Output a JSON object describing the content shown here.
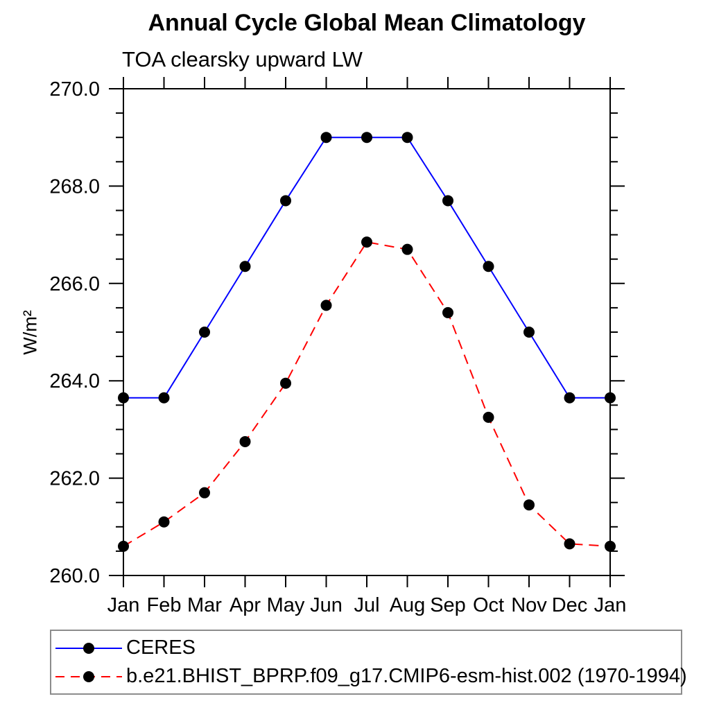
{
  "chart_data": {
    "type": "line",
    "title": "Annual Cycle Global Mean Climatology",
    "subtitle": "TOA clearsky upward LW",
    "ylabel": "W/m²",
    "categories": [
      "Jan",
      "Feb",
      "Mar",
      "Apr",
      "May",
      "Jun",
      "Jul",
      "Aug",
      "Sep",
      "Oct",
      "Nov",
      "Dec",
      "Jan"
    ],
    "ylim": [
      260.0,
      270.0
    ],
    "yticks": [
      260.0,
      262.0,
      264.0,
      266.0,
      268.0,
      270.0
    ],
    "ytick_labels": [
      "260.0",
      "262.0",
      "264.0",
      "266.0",
      "268.0",
      "270.0"
    ],
    "yminor_step": 0.5,
    "grid": false,
    "legend_position": "bottom-left",
    "series": [
      {
        "name": "CERES",
        "color": "#0000ff",
        "line_style": "solid",
        "marker": "filled-circle",
        "marker_color": "#000000",
        "values": [
          263.65,
          263.65,
          265.0,
          266.35,
          267.7,
          269.0,
          269.0,
          269.0,
          267.7,
          266.35,
          265.0,
          263.65,
          263.65
        ]
      },
      {
        "name": "b.e21.BHIST_BPRP.f09_g17.CMIP6-esm-hist.002 (1970-1994)",
        "color": "#ff0000",
        "line_style": "dashed",
        "marker": "filled-circle",
        "marker_color": "#000000",
        "values": [
          260.6,
          261.1,
          261.7,
          262.75,
          263.95,
          265.55,
          266.85,
          266.7,
          265.4,
          263.25,
          261.45,
          260.65,
          260.6
        ]
      }
    ]
  },
  "colors": {
    "axis": "#000000",
    "text": "#000000",
    "background": "#ffffff",
    "legend_border": "#8c8c8c"
  }
}
